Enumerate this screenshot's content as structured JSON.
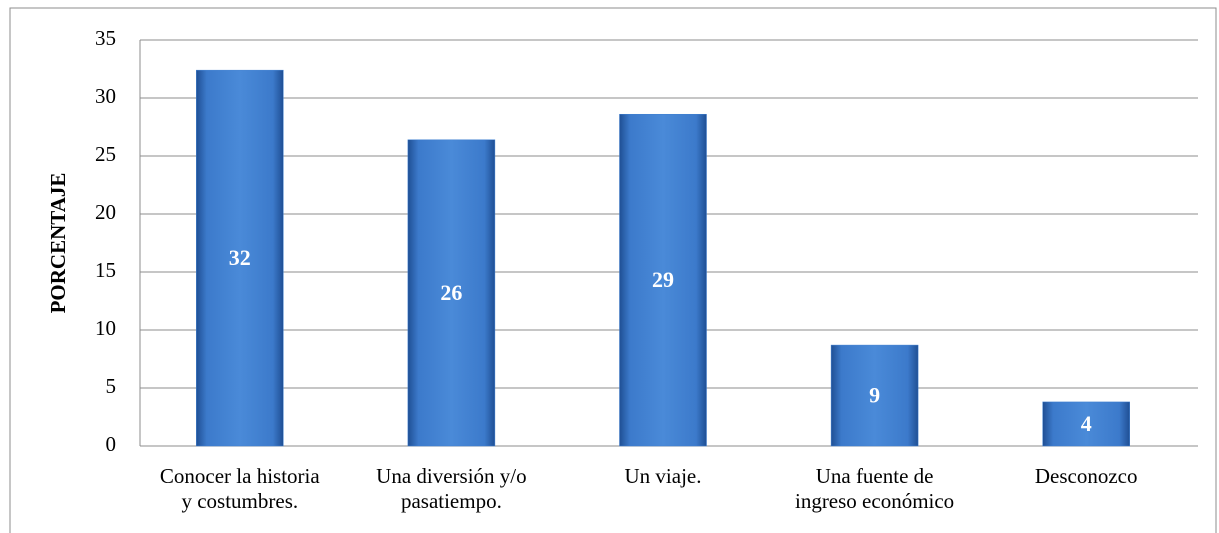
{
  "chart_data": {
    "type": "bar",
    "y_label": "PORCENTAJE",
    "categories": [
      "Conocer la historia\ny costumbres.",
      "Una diversión y/o\npasatiempo.",
      "Un viaje.",
      "Una fuente de\ningreso económico",
      "Desconozco"
    ],
    "values": [
      32.4,
      26.4,
      28.6,
      8.7,
      3.8
    ],
    "value_labels": [
      "32",
      "26",
      "29",
      "9",
      "4"
    ],
    "color": "#3f7fd0",
    "ylim": [
      0,
      35
    ],
    "yticks": [
      0,
      5,
      10,
      15,
      20,
      25,
      30,
      35
    ],
    "grid": true
  }
}
